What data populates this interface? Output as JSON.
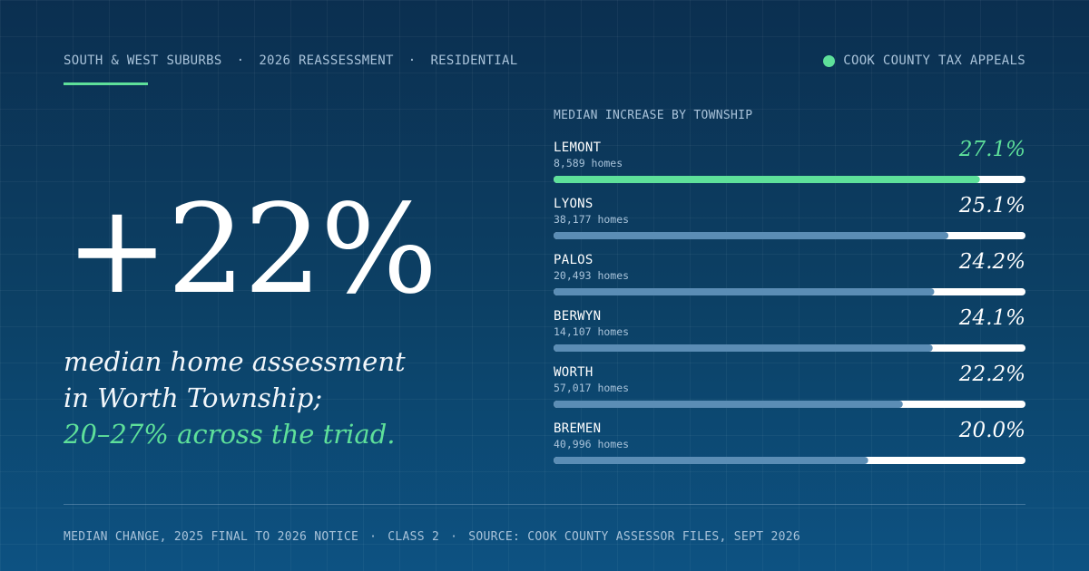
{
  "header": {
    "region": "SOUTH & WEST SUBURBS",
    "year": "2026 REASSESSMENT",
    "class": "RESIDENTIAL",
    "separator": "·",
    "brand": "COOK COUNTY TAX APPEALS"
  },
  "hero": {
    "figure": "+22%",
    "line1": "median home assessment",
    "line2": "in Worth Township;",
    "line3": "20–27% across the triad."
  },
  "footer": {
    "note": "MEDIAN CHANGE, 2025 FINAL TO 2026 NOTICE",
    "class": "CLASS 2",
    "source": "SOURCE: COOK COUNTY ASSESSOR FILES, SEPT 2026",
    "separator": "·"
  },
  "colors": {
    "accent": "#5ee09a",
    "bar": "#5b8db5",
    "track": "#ffffff",
    "background": "#0c3d63"
  },
  "chart_data": {
    "type": "bar",
    "orientation": "horizontal",
    "title": "MEDIAN INCREASE BY TOWNSHIP",
    "xlim": [
      0,
      30
    ],
    "grid": false,
    "categories": [
      "LEMONT",
      "LYONS",
      "PALOS",
      "BERWYN",
      "WORTH",
      "BREMEN"
    ],
    "homes": [
      "8,589 homes",
      "38,177 homes",
      "20,493 homes",
      "14,107 homes",
      "57,017 homes",
      "40,996 homes"
    ],
    "values": [
      27.1,
      25.1,
      24.2,
      24.1,
      22.2,
      20.0
    ],
    "value_labels": [
      "27.1%",
      "25.1%",
      "24.2%",
      "24.1%",
      "22.2%",
      "20.0%"
    ],
    "highlight": "LEMONT"
  }
}
